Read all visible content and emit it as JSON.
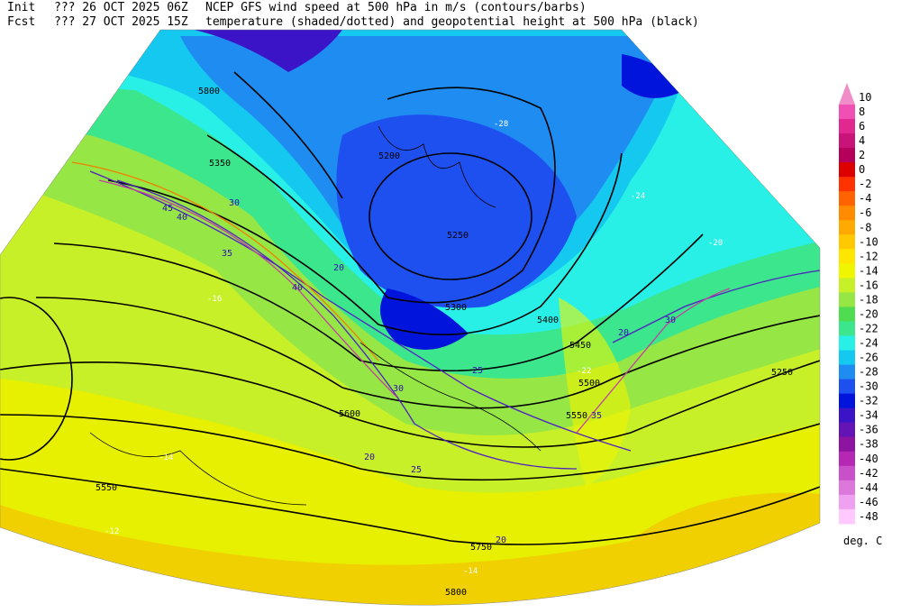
{
  "header": {
    "line1": {
      "label": "Init",
      "time": "??? 26 OCT 2025 06Z",
      "title": "NCEP GFS wind speed at 500 hPa in m/s (contours/barbs)"
    },
    "line2": {
      "label": "Fcst",
      "time": "??? 27 OCT 2025 15Z",
      "title": "temperature (shaded/dotted) and geopotential height at 500 hPa (black)"
    }
  },
  "colorbar": {
    "unit": "deg. C",
    "items": [
      {
        "label": "10",
        "color": "#f08cc8"
      },
      {
        "label": "8",
        "color": "#f050b4"
      },
      {
        "label": "6",
        "color": "#e02890"
      },
      {
        "label": "4",
        "color": "#c81478"
      },
      {
        "label": "2",
        "color": "#b4005a"
      },
      {
        "label": "0",
        "color": "#dc0000"
      },
      {
        "label": "-2",
        "color": "#ff3200"
      },
      {
        "label": "-4",
        "color": "#ff6400"
      },
      {
        "label": "-6",
        "color": "#ff8c00"
      },
      {
        "label": "-8",
        "color": "#ffaa00"
      },
      {
        "label": "-10",
        "color": "#ffc800"
      },
      {
        "label": "-12",
        "color": "#ffe600"
      },
      {
        "label": "-14",
        "color": "#f0f500"
      },
      {
        "label": "-16",
        "color": "#c8f028"
      },
      {
        "label": "-18",
        "color": "#96e646"
      },
      {
        "label": "-20",
        "color": "#50dc50"
      },
      {
        "label": "-22",
        "color": "#3ce68c"
      },
      {
        "label": "-24",
        "color": "#28f0e6"
      },
      {
        "label": "-26",
        "color": "#14c8f0"
      },
      {
        "label": "-28",
        "color": "#1e8cf0"
      },
      {
        "label": "-30",
        "color": "#1e50f0"
      },
      {
        "label": "-32",
        "color": "#0014dc"
      },
      {
        "label": "-34",
        "color": "#3c14c8"
      },
      {
        "label": "-36",
        "color": "#6414b4"
      },
      {
        "label": "-38",
        "color": "#8c14a0"
      },
      {
        "label": "-40",
        "color": "#b428b4"
      },
      {
        "label": "-42",
        "color": "#c850c8"
      },
      {
        "label": "-44",
        "color": "#dc78dc"
      },
      {
        "label": "-46",
        "color": "#f0a0f0"
      },
      {
        "label": "-48",
        "color": "#ffc8ff"
      }
    ]
  },
  "height_labels": [
    "5800",
    "5350",
    "5250",
    "5300",
    "5400",
    "5450",
    "5500",
    "5550",
    "5750",
    "5800",
    "5250",
    "5600",
    "5550",
    "5200"
  ],
  "wind_labels": [
    "45",
    "40",
    "30",
    "35",
    "40",
    "20",
    "25",
    "30",
    "20",
    "25",
    "20",
    "30",
    "35",
    "20"
  ],
  "temp_labels": [
    "-28",
    "-22",
    "-14",
    "-12",
    "-20",
    "-24",
    "-16",
    "-14"
  ]
}
